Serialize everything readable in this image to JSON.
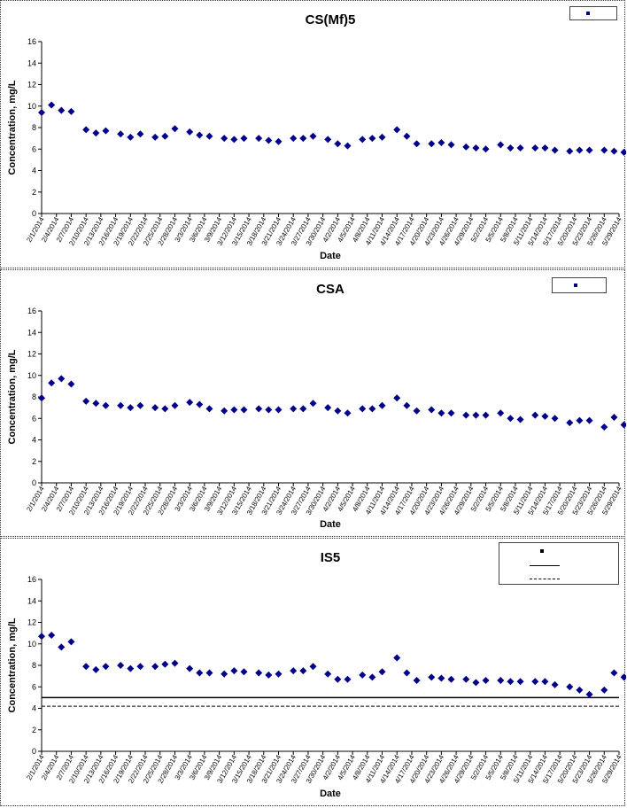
{
  "dates": [
    "2/1/2014",
    "2/4/2014",
    "2/7/2014",
    "2/10/2014",
    "2/13/2014",
    "2/16/2014",
    "2/19/2014",
    "2/22/2014",
    "2/25/2014",
    "2/28/2014",
    "3/3/2014",
    "3/6/2014",
    "3/9/2014",
    "3/12/2014",
    "3/15/2014",
    "3/18/2014",
    "3/21/2014",
    "3/24/2014",
    "3/27/2014",
    "3/30/2014",
    "4/2/2014",
    "4/5/2014",
    "4/8/2014",
    "4/11/2014",
    "4/14/2014",
    "4/17/2014",
    "4/20/2014",
    "4/23/2014",
    "4/26/2014",
    "4/29/2014",
    "5/2/2014",
    "5/5/2014",
    "5/8/2014",
    "5/11/2014",
    "5/14/2014",
    "5/17/2014",
    "5/20/2014",
    "5/23/2014",
    "5/26/2014",
    "5/29/2014"
  ],
  "colors": {
    "marker": "#00008B",
    "axis": "#000000"
  },
  "chart_data": [
    {
      "type": "scatter",
      "title": "CS(Mf)5",
      "xlabel": "Date",
      "ylabel": "Concentration, mg/L",
      "ylim": [
        0,
        16
      ],
      "yticks": [
        "0",
        "2",
        "4",
        "6",
        "8",
        "10",
        "12",
        "14",
        "16"
      ],
      "grid": false,
      "legend_position": "top-right",
      "series": [
        {
          "points": [
            {
              "x": "2/1/2014",
              "y": 9.4
            },
            {
              "x": "2/3/2014",
              "y": 10.1
            },
            {
              "x": "2/5/2014",
              "y": 9.6
            },
            {
              "x": "2/7/2014",
              "y": 9.5
            },
            {
              "x": "2/10/2014",
              "y": 7.8
            },
            {
              "x": "2/12/2014",
              "y": 7.5
            },
            {
              "x": "2/14/2014",
              "y": 7.7
            },
            {
              "x": "2/17/2014",
              "y": 7.4
            },
            {
              "x": "2/19/2014",
              "y": 7.1
            },
            {
              "x": "2/21/2014",
              "y": 7.4
            },
            {
              "x": "2/24/2014",
              "y": 7.1
            },
            {
              "x": "2/26/2014",
              "y": 7.2
            },
            {
              "x": "2/28/2014",
              "y": 7.9
            },
            {
              "x": "3/3/2014",
              "y": 7.6
            },
            {
              "x": "3/5/2014",
              "y": 7.3
            },
            {
              "x": "3/7/2014",
              "y": 7.2
            },
            {
              "x": "3/10/2014",
              "y": 7.0
            },
            {
              "x": "3/12/2014",
              "y": 6.9
            },
            {
              "x": "3/14/2014",
              "y": 7.0
            },
            {
              "x": "3/17/2014",
              "y": 7.0
            },
            {
              "x": "3/19/2014",
              "y": 6.8
            },
            {
              "x": "3/21/2014",
              "y": 6.7
            },
            {
              "x": "3/24/2014",
              "y": 7.0
            },
            {
              "x": "3/26/2014",
              "y": 7.0
            },
            {
              "x": "3/28/2014",
              "y": 7.2
            },
            {
              "x": "3/31/2014",
              "y": 6.9
            },
            {
              "x": "4/2/2014",
              "y": 6.5
            },
            {
              "x": "4/4/2014",
              "y": 6.3
            },
            {
              "x": "4/7/2014",
              "y": 6.9
            },
            {
              "x": "4/9/2014",
              "y": 7.0
            },
            {
              "x": "4/11/2014",
              "y": 7.1
            },
            {
              "x": "4/14/2014",
              "y": 7.8
            },
            {
              "x": "4/16/2014",
              "y": 7.2
            },
            {
              "x": "4/18/2014",
              "y": 6.5
            },
            {
              "x": "4/21/2014",
              "y": 6.5
            },
            {
              "x": "4/23/2014",
              "y": 6.6
            },
            {
              "x": "4/25/2014",
              "y": 6.4
            },
            {
              "x": "4/28/2014",
              "y": 6.2
            },
            {
              "x": "4/30/2014",
              "y": 6.1
            },
            {
              "x": "5/2/2014",
              "y": 6.0
            },
            {
              "x": "5/5/2014",
              "y": 6.4
            },
            {
              "x": "5/7/2014",
              "y": 6.1
            },
            {
              "x": "5/9/2014",
              "y": 6.1
            },
            {
              "x": "5/12/2014",
              "y": 6.1
            },
            {
              "x": "5/14/2014",
              "y": 6.1
            },
            {
              "x": "5/16/2014",
              "y": 5.9
            },
            {
              "x": "5/19/2014",
              "y": 5.8
            },
            {
              "x": "5/21/2014",
              "y": 5.9
            },
            {
              "x": "5/23/2014",
              "y": 5.9
            },
            {
              "x": "5/26/2014",
              "y": 5.9
            },
            {
              "x": "5/28/2014",
              "y": 5.8
            },
            {
              "x": "5/30/2014",
              "y": 5.7
            }
          ]
        }
      ],
      "reference_lines": []
    },
    {
      "type": "scatter",
      "title": "CSA",
      "xlabel": "Date",
      "ylabel": "Concentration, mg/L",
      "ylim": [
        0,
        16
      ],
      "yticks": [
        "0",
        "2",
        "4",
        "6",
        "8",
        "10",
        "12",
        "14",
        "16"
      ],
      "grid": false,
      "legend_position": "top-right",
      "series": [
        {
          "points": [
            {
              "x": "2/1/2014",
              "y": 7.9
            },
            {
              "x": "2/3/2014",
              "y": 9.3
            },
            {
              "x": "2/5/2014",
              "y": 9.7
            },
            {
              "x": "2/7/2014",
              "y": 9.2
            },
            {
              "x": "2/10/2014",
              "y": 7.6
            },
            {
              "x": "2/12/2014",
              "y": 7.4
            },
            {
              "x": "2/14/2014",
              "y": 7.2
            },
            {
              "x": "2/17/2014",
              "y": 7.2
            },
            {
              "x": "2/19/2014",
              "y": 7.0
            },
            {
              "x": "2/21/2014",
              "y": 7.2
            },
            {
              "x": "2/24/2014",
              "y": 7.0
            },
            {
              "x": "2/26/2014",
              "y": 6.9
            },
            {
              "x": "2/28/2014",
              "y": 7.2
            },
            {
              "x": "3/3/2014",
              "y": 7.5
            },
            {
              "x": "3/5/2014",
              "y": 7.3
            },
            {
              "x": "3/7/2014",
              "y": 6.9
            },
            {
              "x": "3/10/2014",
              "y": 6.7
            },
            {
              "x": "3/12/2014",
              "y": 6.8
            },
            {
              "x": "3/14/2014",
              "y": 6.8
            },
            {
              "x": "3/17/2014",
              "y": 6.9
            },
            {
              "x": "3/19/2014",
              "y": 6.8
            },
            {
              "x": "3/21/2014",
              "y": 6.8
            },
            {
              "x": "3/24/2014",
              "y": 6.9
            },
            {
              "x": "3/26/2014",
              "y": 6.9
            },
            {
              "x": "3/28/2014",
              "y": 7.4
            },
            {
              "x": "3/31/2014",
              "y": 7.0
            },
            {
              "x": "4/2/2014",
              "y": 6.7
            },
            {
              "x": "4/4/2014",
              "y": 6.5
            },
            {
              "x": "4/7/2014",
              "y": 6.9
            },
            {
              "x": "4/9/2014",
              "y": 6.9
            },
            {
              "x": "4/11/2014",
              "y": 7.2
            },
            {
              "x": "4/14/2014",
              "y": 7.9
            },
            {
              "x": "4/16/2014",
              "y": 7.2
            },
            {
              "x": "4/18/2014",
              "y": 6.7
            },
            {
              "x": "4/21/2014",
              "y": 6.8
            },
            {
              "x": "4/23/2014",
              "y": 6.5
            },
            {
              "x": "4/25/2014",
              "y": 6.5
            },
            {
              "x": "4/28/2014",
              "y": 6.3
            },
            {
              "x": "4/30/2014",
              "y": 6.3
            },
            {
              "x": "5/2/2014",
              "y": 6.3
            },
            {
              "x": "5/5/2014",
              "y": 6.5
            },
            {
              "x": "5/7/2014",
              "y": 6.0
            },
            {
              "x": "5/9/2014",
              "y": 5.9
            },
            {
              "x": "5/12/2014",
              "y": 6.3
            },
            {
              "x": "5/14/2014",
              "y": 6.2
            },
            {
              "x": "5/16/2014",
              "y": 6.0
            },
            {
              "x": "5/19/2014",
              "y": 5.6
            },
            {
              "x": "5/21/2014",
              "y": 5.8
            },
            {
              "x": "5/23/2014",
              "y": 5.8
            },
            {
              "x": "5/26/2014",
              "y": 5.2
            },
            {
              "x": "5/28/2014",
              "y": 6.1
            },
            {
              "x": "5/30/2014",
              "y": 5.4
            }
          ]
        }
      ],
      "reference_lines": []
    },
    {
      "type": "scatter",
      "title": "IS5",
      "xlabel": "Date",
      "ylabel": "Concentration, mg/L",
      "ylim": [
        0,
        16
      ],
      "yticks": [
        "0",
        "2",
        "4",
        "6",
        "8",
        "10",
        "12",
        "14",
        "16"
      ],
      "grid": false,
      "legend_position": "top-right",
      "series": [
        {
          "points": [
            {
              "x": "2/1/2014",
              "y": 10.7
            },
            {
              "x": "2/3/2014",
              "y": 10.8
            },
            {
              "x": "2/5/2014",
              "y": 9.7
            },
            {
              "x": "2/7/2014",
              "y": 10.2
            },
            {
              "x": "2/10/2014",
              "y": 7.9
            },
            {
              "x": "2/12/2014",
              "y": 7.6
            },
            {
              "x": "2/14/2014",
              "y": 7.9
            },
            {
              "x": "2/17/2014",
              "y": 8.0
            },
            {
              "x": "2/19/2014",
              "y": 7.7
            },
            {
              "x": "2/21/2014",
              "y": 7.9
            },
            {
              "x": "2/24/2014",
              "y": 7.9
            },
            {
              "x": "2/26/2014",
              "y": 8.1
            },
            {
              "x": "2/28/2014",
              "y": 8.2
            },
            {
              "x": "3/3/2014",
              "y": 7.7
            },
            {
              "x": "3/5/2014",
              "y": 7.3
            },
            {
              "x": "3/7/2014",
              "y": 7.3
            },
            {
              "x": "3/10/2014",
              "y": 7.2
            },
            {
              "x": "3/12/2014",
              "y": 7.5
            },
            {
              "x": "3/14/2014",
              "y": 7.4
            },
            {
              "x": "3/17/2014",
              "y": 7.3
            },
            {
              "x": "3/19/2014",
              "y": 7.1
            },
            {
              "x": "3/21/2014",
              "y": 7.2
            },
            {
              "x": "3/24/2014",
              "y": 7.5
            },
            {
              "x": "3/26/2014",
              "y": 7.5
            },
            {
              "x": "3/28/2014",
              "y": 7.9
            },
            {
              "x": "3/31/2014",
              "y": 7.2
            },
            {
              "x": "4/2/2014",
              "y": 6.7
            },
            {
              "x": "4/4/2014",
              "y": 6.7
            },
            {
              "x": "4/7/2014",
              "y": 7.1
            },
            {
              "x": "4/9/2014",
              "y": 6.9
            },
            {
              "x": "4/11/2014",
              "y": 7.4
            },
            {
              "x": "4/14/2014",
              "y": 8.7
            },
            {
              "x": "4/16/2014",
              "y": 7.3
            },
            {
              "x": "4/18/2014",
              "y": 6.6
            },
            {
              "x": "4/21/2014",
              "y": 6.9
            },
            {
              "x": "4/23/2014",
              "y": 6.8
            },
            {
              "x": "4/25/2014",
              "y": 6.7
            },
            {
              "x": "4/28/2014",
              "y": 6.7
            },
            {
              "x": "4/30/2014",
              "y": 6.4
            },
            {
              "x": "5/2/2014",
              "y": 6.6
            },
            {
              "x": "5/5/2014",
              "y": 6.6
            },
            {
              "x": "5/7/2014",
              "y": 6.5
            },
            {
              "x": "5/9/2014",
              "y": 6.5
            },
            {
              "x": "5/12/2014",
              "y": 6.5
            },
            {
              "x": "5/14/2014",
              "y": 6.5
            },
            {
              "x": "5/16/2014",
              "y": 6.2
            },
            {
              "x": "5/19/2014",
              "y": 6.0
            },
            {
              "x": "5/21/2014",
              "y": 5.7
            },
            {
              "x": "5/23/2014",
              "y": 5.3
            },
            {
              "x": "5/26/2014",
              "y": 5.7
            },
            {
              "x": "5/28/2014",
              "y": 7.3
            },
            {
              "x": "5/30/2014",
              "y": 6.9
            }
          ]
        }
      ],
      "reference_lines": [
        {
          "y": 5.0,
          "style": "solid"
        },
        {
          "y": 4.2,
          "style": "dashed"
        }
      ]
    }
  ]
}
